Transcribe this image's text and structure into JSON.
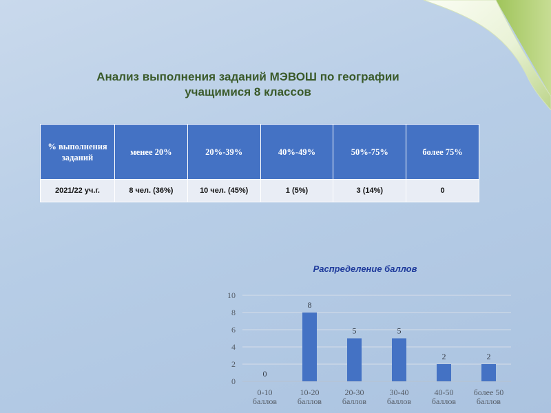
{
  "slide": {
    "title_line1": "Анализ выполнения заданий МЭВОШ по географии",
    "title_line2": "учащимися 8 классов"
  },
  "table": {
    "headers": [
      "% выполнения заданий",
      "менее 20%",
      "20%-39%",
      "40%-49%",
      "50%-75%",
      "более 75%"
    ],
    "rows": [
      [
        "2021/22 уч.г.",
        "8 чел. (36%)",
        "10 чел. (45%)",
        "1 (5%)",
        "3 (14%)",
        "0"
      ]
    ]
  },
  "chart_data": {
    "type": "bar",
    "title": "Распределение баллов",
    "categories": [
      [
        "0-10",
        "баллов"
      ],
      [
        "10-20",
        "баллов"
      ],
      [
        "20-30",
        "баллов"
      ],
      [
        "30-40",
        "баллов"
      ],
      [
        "40-50",
        "баллов"
      ],
      [
        "более 50",
        "баллов"
      ]
    ],
    "values": [
      0,
      8,
      5,
      5,
      2,
      2
    ],
    "yticks": [
      0,
      2,
      4,
      6,
      8,
      10
    ],
    "ylim": [
      0,
      10
    ],
    "grid": true,
    "bar_color": "#4472c4"
  },
  "colors": {
    "title": "#3a5a2a",
    "header_bg": "#4472c4",
    "row_bg": "#e9edf5",
    "chart_title": "#1f3b9c"
  }
}
